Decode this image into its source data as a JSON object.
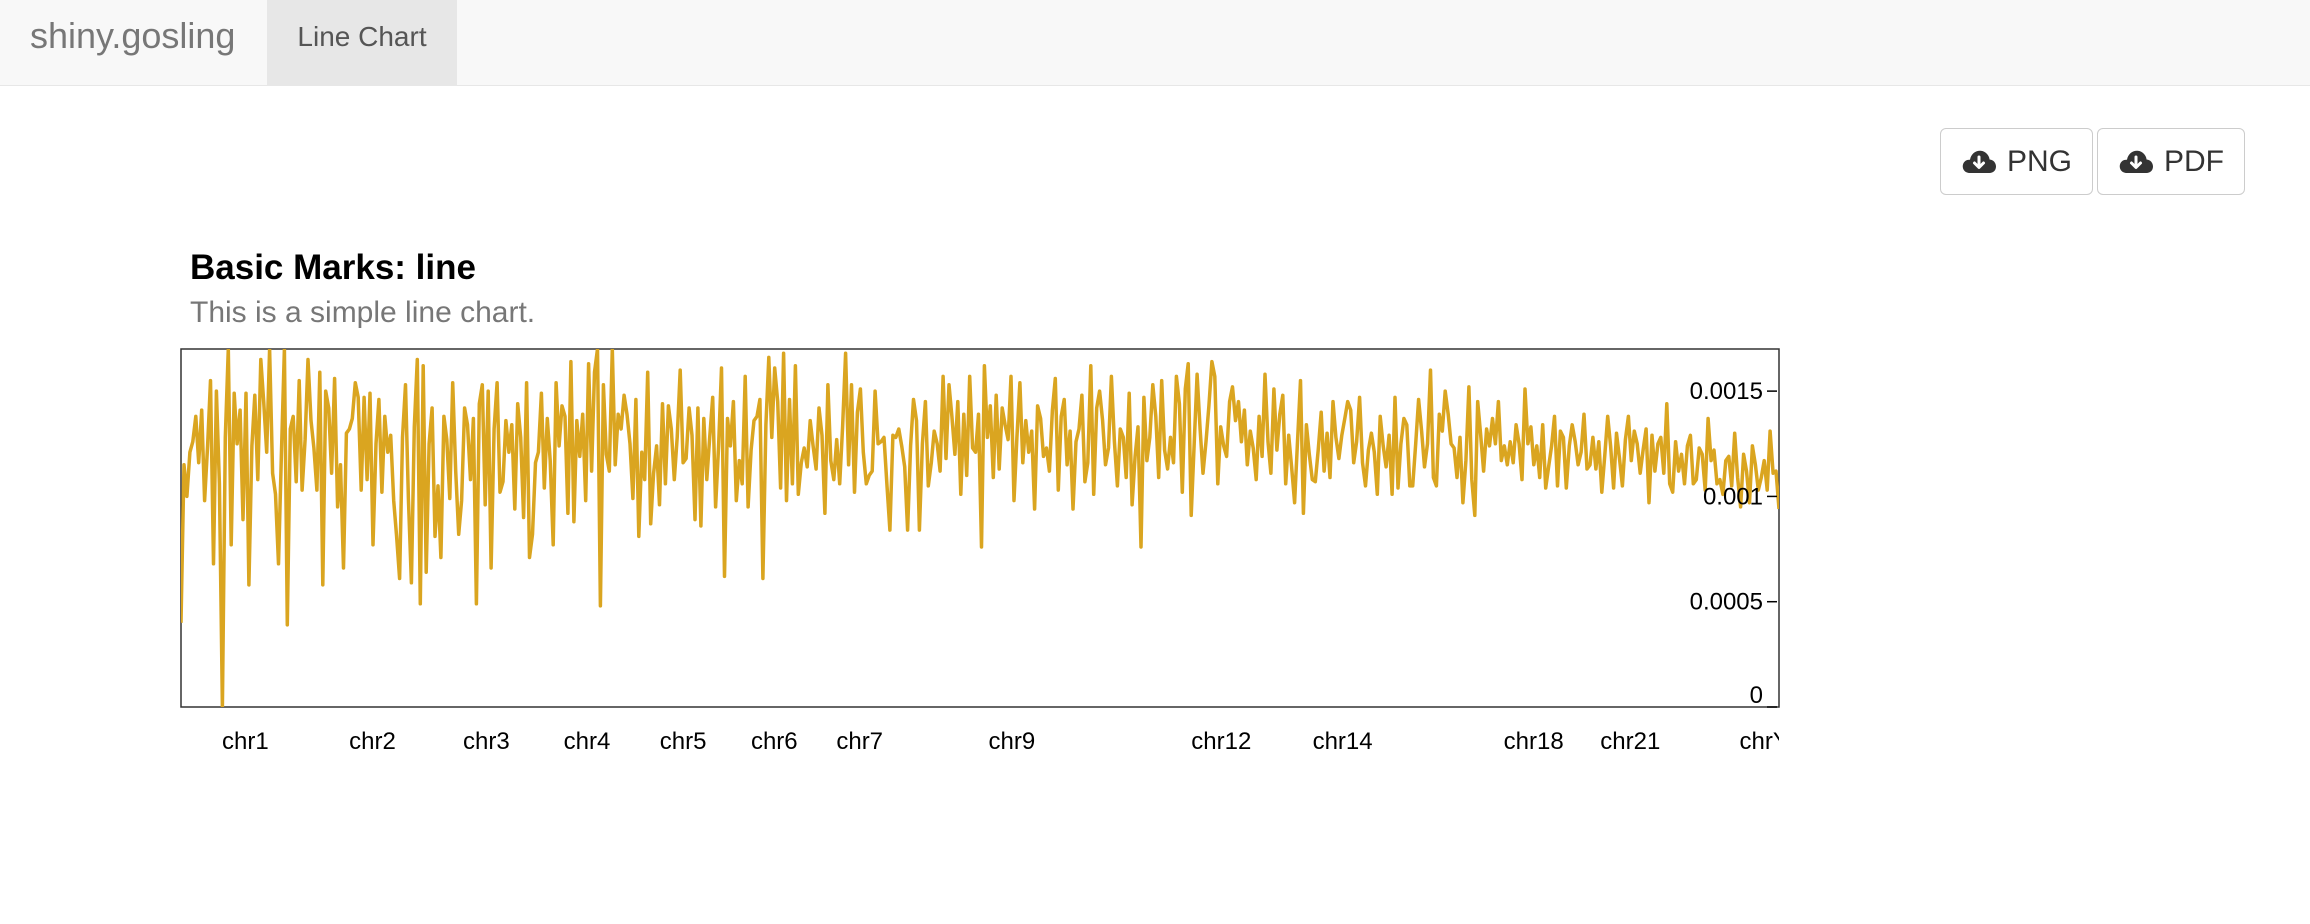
{
  "navbar": {
    "brand": "shiny.gosling",
    "tabs": [
      {
        "label": "Line Chart",
        "active": true
      }
    ]
  },
  "toolbar": {
    "png_label": "PNG",
    "pdf_label": "PDF",
    "icon": "cloud-download-icon"
  },
  "chart_data": {
    "type": "line",
    "title": "Basic Marks: line",
    "subtitle": "This is a simple line chart.",
    "xlabel": "",
    "ylabel": "",
    "x_tick_labels": [
      "chr1",
      "chr2",
      "chr3",
      "chr4",
      "chr5",
      "chr6",
      "chr7",
      "chr9",
      "chr12",
      "chr14",
      "chr18",
      "chr21",
      "chrY"
    ],
    "ylim": [
      0,
      0.0017
    ],
    "y_ticks": [
      {
        "value": 0,
        "label": "0"
      },
      {
        "value": 0.0005,
        "label": "0.0005"
      },
      {
        "value": 0.001,
        "label": "0.001"
      },
      {
        "value": 0.0015,
        "label": "0.0015"
      }
    ],
    "line_color": "#daa520",
    "grid": false,
    "series": [
      {
        "values": [
          0.0004,
          0.00115,
          0.001,
          0.00121,
          0.00126,
          0.00138,
          0.00116,
          0.00141,
          0.00098,
          0.00124,
          0.00155,
          0.00068,
          0.0015,
          0.00106,
          0,
          0.00128,
          0.0017,
          0.00077,
          0.00149,
          0.00125,
          0.00141,
          0.00089,
          0.00149,
          0.00058,
          0.00124,
          0.00148,
          0.00108,
          0.00165,
          0.00145,
          0.00121,
          0.0017,
          0.00111,
          0.00101,
          0.00068,
          0.0012,
          0.0017,
          0.00039,
          0.00132,
          0.00138,
          0.00107,
          0.00155,
          0.00103,
          0.00127,
          0.00165,
          0.00136,
          0.00123,
          0.00103,
          0.00159,
          0.00058,
          0.0015,
          0.00142,
          0.00111,
          0.00156,
          0.00095,
          0.00115,
          0.00066,
          0.0013,
          0.00132,
          0.00137,
          0.00154,
          0.00147,
          0.00103,
          0.00147,
          0.00108,
          0.00149,
          0.00077,
          0.00125,
          0.00146,
          0.00102,
          0.00138,
          0.00121,
          0.00129,
          0.00098,
          0.00081,
          0.00061,
          0.00128,
          0.00153,
          0.00099,
          0.00059,
          0.00133,
          0.00165,
          0.00049,
          0.00162,
          0.00064,
          0.00125,
          0.00142,
          0.00081,
          0.00105,
          0.00071,
          0.00138,
          0.00127,
          0.00099,
          0.00154,
          0.00112,
          0.00082,
          0.00098,
          0.00142,
          0.00134,
          0.00108,
          0.00137,
          0.00049,
          0.00144,
          0.00153,
          0.00096,
          0.0015,
          0.00066,
          0.00132,
          0.00154,
          0.00102,
          0.00107,
          0.00136,
          0.00121,
          0.00134,
          0.00094,
          0.00144,
          0.00128,
          0.0009,
          0.00154,
          0.00071,
          0.00082,
          0.00116,
          0.00121,
          0.00149,
          0.00104,
          0.00137,
          0.00117,
          0.00077,
          0.00154,
          0.00124,
          0.00143,
          0.00138,
          0.00092,
          0.00164,
          0.00088,
          0.00136,
          0.00119,
          0.00139,
          0.00098,
          0.00163,
          0.00112,
          0.00159,
          0.0017,
          0.00048,
          0.00153,
          0.0012,
          0.00112,
          0.0017,
          0.00115,
          0.00139,
          0.00132,
          0.00148,
          0.00139,
          0.00125,
          0.00099,
          0.00146,
          0.00081,
          0.00121,
          0.00108,
          0.00159,
          0.00087,
          0.00111,
          0.00124,
          0.00096,
          0.00144,
          0.00106,
          0.00143,
          0.00132,
          0.00108,
          0.00128,
          0.0016,
          0.00116,
          0.00118,
          0.00142,
          0.00129,
          0.00089,
          0.00142,
          0.00086,
          0.00137,
          0.00108,
          0.00128,
          0.00147,
          0.00095,
          0.00124,
          0.00161,
          0.00062,
          0.00137,
          0.00124,
          0.00145,
          0.00098,
          0.00117,
          0.00106,
          0.00157,
          0.00095,
          0.00122,
          0.00136,
          0.00138,
          0.00146,
          0.00061,
          0.00134,
          0.00166,
          0.00128,
          0.00161,
          0.00145,
          0.00104,
          0.00168,
          0.00098,
          0.00146,
          0.00106,
          0.00162,
          0.00101,
          0.00116,
          0.00123,
          0.00114,
          0.00136,
          0.00124,
          0.00113,
          0.00142,
          0.00129,
          0.00092,
          0.00153,
          0.00117,
          0.00108,
          0.00127,
          0.00106,
          0.00133,
          0.00168,
          0.00115,
          0.00153,
          0.00102,
          0.0014,
          0.00151,
          0.00121,
          0.00106,
          0.0011,
          0.00112,
          0.0015,
          0.00125,
          0.00126,
          0.00128,
          0.00105,
          0.00084,
          0.00129,
          0.00128,
          0.00132,
          0.00124,
          0.00114,
          0.00084,
          0.00124,
          0.00146,
          0.00136,
          0.00084,
          0.00125,
          0.00145,
          0.00105,
          0.00116,
          0.00131,
          0.00125,
          0.00112,
          0.00157,
          0.00118,
          0.00153,
          0.00138,
          0.0012,
          0.00145,
          0.00101,
          0.00139,
          0.0011,
          0.00157,
          0.00123,
          0.00121,
          0.00139,
          0.00076,
          0.00162,
          0.00128,
          0.00143,
          0.00109,
          0.00148,
          0.00113,
          0.00142,
          0.00134,
          0.00127,
          0.00157,
          0.00098,
          0.00128,
          0.00154,
          0.00116,
          0.00136,
          0.00121,
          0.00131,
          0.00094,
          0.00143,
          0.00137,
          0.00119,
          0.00123,
          0.00112,
          0.00141,
          0.00156,
          0.00103,
          0.00138,
          0.00146,
          0.00115,
          0.00131,
          0.00094,
          0.00126,
          0.00132,
          0.00148,
          0.00107,
          0.00116,
          0.00162,
          0.00101,
          0.00142,
          0.0015,
          0.00136,
          0.00115,
          0.00123,
          0.00157,
          0.00126,
          0.00105,
          0.00132,
          0.00128,
          0.00109,
          0.00149,
          0.00096,
          0.00119,
          0.00133,
          0.00076,
          0.00147,
          0.00117,
          0.00128,
          0.00153,
          0.00138,
          0.00109,
          0.00155,
          0.00122,
          0.00113,
          0.00128,
          0.00116,
          0.00157,
          0.00144,
          0.00102,
          0.00151,
          0.00163,
          0.00091,
          0.00124,
          0.00158,
          0.00132,
          0.00111,
          0.00126,
          0.00143,
          0.00164,
          0.00157,
          0.00106,
          0.00133,
          0.00124,
          0.00119,
          0.00145,
          0.00152,
          0.00136,
          0.00145,
          0.00126,
          0.00141,
          0.00115,
          0.00131,
          0.00123,
          0.00108,
          0.00138,
          0.00119,
          0.00158,
          0.00126,
          0.00111,
          0.00151,
          0.00122,
          0.00139,
          0.00148,
          0.00106,
          0.00129,
          0.00114,
          0.00097,
          0.00126,
          0.00155,
          0.00092,
          0.00134,
          0.0012,
          0.00108,
          0.00107,
          0.00122,
          0.0014,
          0.00112,
          0.0013,
          0.00109,
          0.00145,
          0.00128,
          0.00118,
          0.00129,
          0.00137,
          0.00145,
          0.00141,
          0.00116,
          0.00126,
          0.00147,
          0.00116,
          0.00105,
          0.00122,
          0.0013,
          0.00121,
          0.00101,
          0.00138,
          0.00124,
          0.00114,
          0.00129,
          0.00101,
          0.00147,
          0.00104,
          0.00125,
          0.00137,
          0.00134,
          0.00105,
          0.00105,
          0.00125,
          0.00146,
          0.00131,
          0.00114,
          0.00125,
          0.0016,
          0.00109,
          0.00105,
          0.00139,
          0.00131,
          0.0015,
          0.00139,
          0.00125,
          0.00123,
          0.00109,
          0.00128,
          0.00097,
          0.00117,
          0.00152,
          0.00108,
          0.00091,
          0.00145,
          0.00129,
          0.00112,
          0.00132,
          0.00124,
          0.00137,
          0.00125,
          0.00145,
          0.00117,
          0.00124,
          0.00115,
          0.00126,
          0.00116,
          0.00134,
          0.00125,
          0.00108,
          0.00151,
          0.00125,
          0.00133,
          0.00115,
          0.00124,
          0.00109,
          0.00134,
          0.00104,
          0.00114,
          0.00124,
          0.00138,
          0.00105,
          0.00131,
          0.00128,
          0.00104,
          0.00124,
          0.00134,
          0.00126,
          0.00115,
          0.00121,
          0.00139,
          0.00113,
          0.00115,
          0.00128,
          0.00113,
          0.00126,
          0.00102,
          0.00119,
          0.00138,
          0.00124,
          0.00104,
          0.0013,
          0.00118,
          0.00105,
          0.00127,
          0.00138,
          0.00117,
          0.00131,
          0.00125,
          0.00111,
          0.00122,
          0.00132,
          0.00097,
          0.00129,
          0.00112,
          0.00125,
          0.00128,
          0.00111,
          0.00144,
          0.00106,
          0.00102,
          0.00126,
          0.00112,
          0.0012,
          0.00106,
          0.00124,
          0.00129,
          0.00106,
          0.00108,
          0.00123,
          0.0012,
          0.00103,
          0.00137,
          0.00117,
          0.00122,
          0.00106,
          0.00108,
          0.00101,
          0.00117,
          0.00119,
          0.00105,
          0.0013,
          0.00109,
          0.00095,
          0.0012,
          0.00112,
          0.00097,
          0.00124,
          0.00115,
          0.00103,
          0.00109,
          0.00117,
          0.00103,
          0.00131,
          0.00111,
          0.00112,
          0.00094
        ]
      }
    ]
  }
}
